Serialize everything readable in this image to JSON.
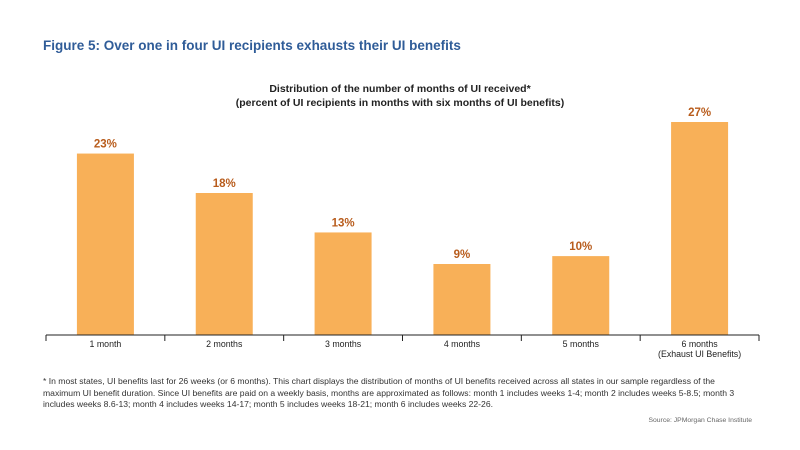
{
  "figure_title": "Figure 5: Over one in four UI recipients exhausts their UI benefits",
  "footnote": "* In most states, UI benefits last for 26 weeks (or 6 months). This chart displays the distribution of months of UI benefits received across all states in our sample regardless of the maximum UI benefit duration. Since UI benefits are paid on a weekly basis, months are approximated as follows: month 1 includes weeks 1-4; month 2 includes weeks 5-8.5; month 3 includes weeks 8.6-13; month 4 includes weeks 14-17; month 5 includes weeks 18-21; month 6 includes weeks 22-26.",
  "source": "Source:  JPMorgan Chase Institute",
  "colors": {
    "title": "#2f5c98",
    "bar": "#f8b058",
    "bar_label": "#b85c1c",
    "axis": "#222222"
  },
  "chart_data": {
    "type": "bar",
    "title": "Distribution of the number of months of UI received*",
    "subtitle": "(percent of UI recipients in months with six months of UI benefits)",
    "categories": [
      [
        "1 month"
      ],
      [
        "2 months"
      ],
      [
        "3 months"
      ],
      [
        "4 months"
      ],
      [
        "5 months"
      ],
      [
        "6 months",
        "(Exhaust UI Benefits)"
      ]
    ],
    "values": [
      23,
      18,
      13,
      9,
      10,
      27
    ],
    "data_labels": [
      "23%",
      "18%",
      "13%",
      "9%",
      "10%",
      "27%"
    ],
    "xlabel": "",
    "ylabel": "",
    "ylim": [
      0,
      27
    ],
    "grid": false,
    "legend": "none"
  }
}
